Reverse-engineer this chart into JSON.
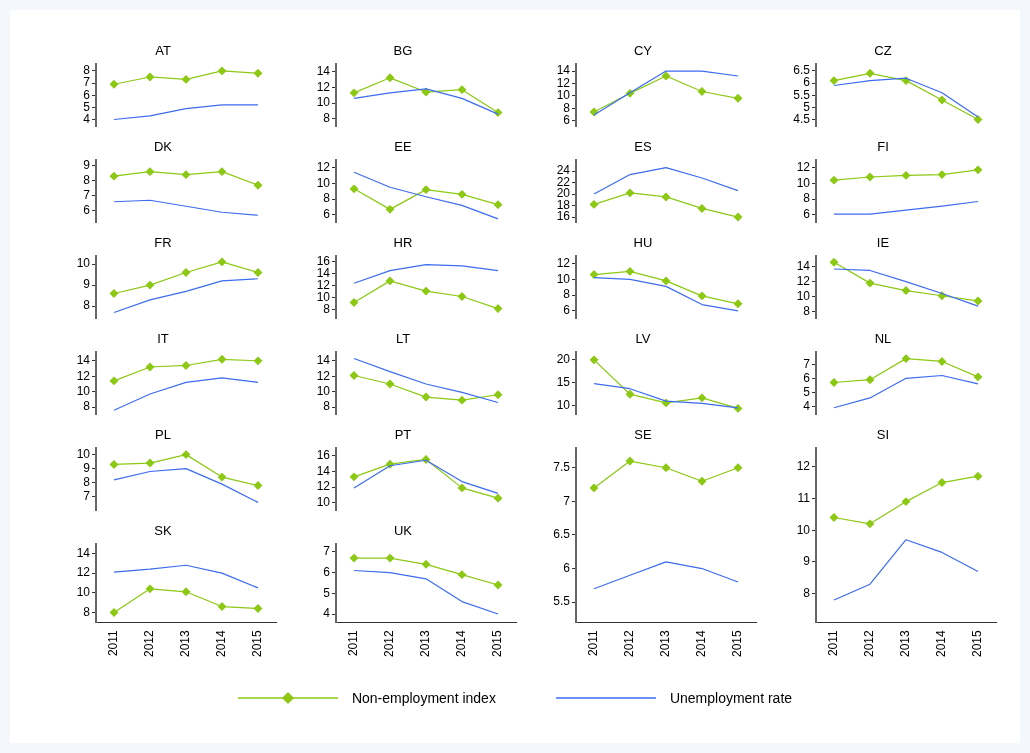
{
  "chart_data": [
    {
      "type": "line",
      "title": "AT",
      "legend": "bottom",
      "tick_labels": "y",
      "categories": [
        "2011",
        "2012",
        "2013",
        "2014",
        "2015"
      ],
      "ylim": [
        3.4,
        8.6
      ],
      "yticks": [
        4,
        5,
        6,
        7,
        8
      ],
      "series": [
        {
          "name": "Non-employment index",
          "color": "#8cc814",
          "marker": "diamond",
          "values": [
            6.9,
            7.5,
            7.3,
            8.0,
            7.8
          ]
        },
        {
          "name": "Unemployment rate",
          "color": "#3c6cf0",
          "marker": "none",
          "values": [
            4.0,
            4.3,
            4.9,
            5.2,
            5.2
          ]
        }
      ]
    },
    {
      "type": "line",
      "title": "BG",
      "tick_labels": "y",
      "categories": [
        "2011",
        "2012",
        "2013",
        "2014",
        "2015"
      ],
      "ylim": [
        7,
        15
      ],
      "yticks": [
        8,
        10,
        12,
        14
      ],
      "series": [
        {
          "color": "#8cc814",
          "marker": "diamond",
          "values": [
            11.3,
            13.2,
            11.4,
            11.7,
            8.8
          ]
        },
        {
          "color": "#3c6cf0",
          "marker": "none",
          "values": [
            10.6,
            11.3,
            11.8,
            10.6,
            8.6
          ]
        }
      ]
    },
    {
      "type": "line",
      "title": "CY",
      "tick_labels": "y",
      "categories": [
        "2011",
        "2012",
        "2013",
        "2014",
        "2015"
      ],
      "ylim": [
        5,
        15.2
      ],
      "yticks": [
        6,
        8,
        10,
        12,
        14
      ],
      "series": [
        {
          "color": "#8cc814",
          "marker": "diamond",
          "values": [
            7.4,
            10.4,
            13.2,
            10.7,
            9.6
          ]
        },
        {
          "color": "#3c6cf0",
          "marker": "none",
          "values": [
            6.9,
            10.5,
            14.0,
            14.0,
            13.2
          ]
        }
      ]
    },
    {
      "type": "line",
      "title": "CZ",
      "tick_labels": "y",
      "categories": [
        "2011",
        "2012",
        "2013",
        "2014",
        "2015"
      ],
      "ylim": [
        4.2,
        6.8
      ],
      "yticks": [
        4.5,
        5,
        5.5,
        6,
        6.5
      ],
      "series": [
        {
          "color": "#8cc814",
          "marker": "diamond",
          "values": [
            6.1,
            6.4,
            6.1,
            5.3,
            4.5
          ]
        },
        {
          "color": "#3c6cf0",
          "marker": "none",
          "values": [
            5.9,
            6.1,
            6.2,
            5.6,
            4.6
          ]
        }
      ]
    },
    {
      "type": "line",
      "title": "DK",
      "tick_labels": "y",
      "categories": [
        "2011",
        "2012",
        "2013",
        "2014",
        "2015"
      ],
      "ylim": [
        5.2,
        9.4
      ],
      "yticks": [
        6,
        7,
        8,
        9
      ],
      "series": [
        {
          "color": "#8cc814",
          "marker": "diamond",
          "values": [
            8.3,
            8.6,
            8.4,
            8.6,
            7.7
          ]
        },
        {
          "color": "#3c6cf0",
          "marker": "none",
          "values": [
            6.6,
            6.7,
            6.3,
            5.9,
            5.7
          ]
        }
      ]
    },
    {
      "type": "line",
      "title": "EE",
      "tick_labels": "y",
      "categories": [
        "2011",
        "2012",
        "2013",
        "2014",
        "2015"
      ],
      "ylim": [
        5,
        13
      ],
      "yticks": [
        6,
        8,
        10,
        12
      ],
      "series": [
        {
          "color": "#8cc814",
          "marker": "diamond",
          "values": [
            9.3,
            6.7,
            9.2,
            8.6,
            7.3
          ]
        },
        {
          "color": "#3c6cf0",
          "marker": "none",
          "values": [
            11.4,
            9.5,
            8.3,
            7.2,
            5.5
          ]
        }
      ]
    },
    {
      "type": "line",
      "title": "ES",
      "tick_labels": "y",
      "categories": [
        "2011",
        "2012",
        "2013",
        "2014",
        "2015"
      ],
      "ylim": [
        15,
        26
      ],
      "yticks": [
        16,
        18,
        20,
        22,
        24
      ],
      "series": [
        {
          "color": "#8cc814",
          "marker": "diamond",
          "values": [
            18.2,
            20.2,
            19.5,
            17.5,
            16.0
          ]
        },
        {
          "color": "#3c6cf0",
          "marker": "none",
          "values": [
            20.0,
            23.4,
            24.6,
            22.8,
            20.6
          ]
        }
      ]
    },
    {
      "type": "line",
      "title": "FI",
      "tick_labels": "y",
      "categories": [
        "2011",
        "2012",
        "2013",
        "2014",
        "2015"
      ],
      "ylim": [
        5,
        13
      ],
      "yticks": [
        6,
        8,
        10,
        12
      ],
      "series": [
        {
          "color": "#8cc814",
          "marker": "diamond",
          "values": [
            10.4,
            10.8,
            11.0,
            11.1,
            11.7
          ]
        },
        {
          "color": "#3c6cf0",
          "marker": "none",
          "values": [
            6.1,
            6.1,
            6.6,
            7.1,
            7.7
          ]
        }
      ]
    },
    {
      "type": "line",
      "title": "FR",
      "tick_labels": "y",
      "categories": [
        "2011",
        "2012",
        "2013",
        "2014",
        "2015"
      ],
      "ylim": [
        7.4,
        10.4
      ],
      "yticks": [
        8,
        9,
        10
      ],
      "series": [
        {
          "color": "#8cc814",
          "marker": "diamond",
          "values": [
            8.6,
            9.0,
            9.6,
            10.1,
            9.6
          ]
        },
        {
          "color": "#3c6cf0",
          "marker": "none",
          "values": [
            7.7,
            8.3,
            8.7,
            9.2,
            9.3
          ]
        }
      ]
    },
    {
      "type": "line",
      "title": "HR",
      "tick_labels": "y",
      "categories": [
        "2011",
        "2012",
        "2013",
        "2014",
        "2015"
      ],
      "ylim": [
        6.5,
        17
      ],
      "yticks": [
        8,
        10,
        12,
        14,
        16
      ],
      "series": [
        {
          "color": "#8cc814",
          "marker": "diamond",
          "values": [
            9.2,
            12.8,
            11.1,
            10.2,
            8.2
          ]
        },
        {
          "color": "#3c6cf0",
          "marker": "none",
          "values": [
            12.4,
            14.5,
            15.5,
            15.3,
            14.5
          ]
        }
      ]
    },
    {
      "type": "line",
      "title": "HU",
      "tick_labels": "y",
      "categories": [
        "2011",
        "2012",
        "2013",
        "2014",
        "2015"
      ],
      "ylim": [
        5,
        13
      ],
      "yticks": [
        6,
        8,
        10,
        12
      ],
      "series": [
        {
          "color": "#8cc814",
          "marker": "diamond",
          "values": [
            10.6,
            11.0,
            9.8,
            7.9,
            6.9
          ]
        },
        {
          "color": "#3c6cf0",
          "marker": "none",
          "values": [
            10.2,
            10.0,
            9.1,
            6.8,
            6.0
          ]
        }
      ]
    },
    {
      "type": "line",
      "title": "IE",
      "tick_labels": "y",
      "categories": [
        "2011",
        "2012",
        "2013",
        "2014",
        "2015"
      ],
      "ylim": [
        7,
        15.5
      ],
      "yticks": [
        8,
        10,
        12,
        14
      ],
      "series": [
        {
          "color": "#8cc814",
          "marker": "diamond",
          "values": [
            14.6,
            11.8,
            10.8,
            10.1,
            9.4
          ]
        },
        {
          "color": "#3c6cf0",
          "marker": "none",
          "values": [
            13.7,
            13.5,
            12.0,
            10.4,
            8.7
          ]
        }
      ]
    },
    {
      "type": "line",
      "title": "IT",
      "tick_labels": "y",
      "categories": [
        "2011",
        "2012",
        "2013",
        "2014",
        "2015"
      ],
      "ylim": [
        7,
        15.2
      ],
      "yticks": [
        8,
        10,
        12,
        14
      ],
      "series": [
        {
          "color": "#8cc814",
          "marker": "diamond",
          "values": [
            11.4,
            13.2,
            13.4,
            14.2,
            14.0
          ]
        },
        {
          "color": "#3c6cf0",
          "marker": "none",
          "values": [
            7.6,
            9.7,
            11.2,
            11.8,
            11.2
          ]
        }
      ]
    },
    {
      "type": "line",
      "title": "LT",
      "tick_labels": "y",
      "categories": [
        "2011",
        "2012",
        "2013",
        "2014",
        "2015"
      ],
      "ylim": [
        7,
        15.2
      ],
      "yticks": [
        8,
        10,
        12,
        14
      ],
      "series": [
        {
          "color": "#8cc814",
          "marker": "diamond",
          "values": [
            12.1,
            11.0,
            9.3,
            8.9,
            9.6
          ]
        },
        {
          "color": "#3c6cf0",
          "marker": "none",
          "values": [
            14.3,
            12.6,
            11.0,
            9.9,
            8.6
          ]
        }
      ]
    },
    {
      "type": "line",
      "title": "LV",
      "tick_labels": "y",
      "categories": [
        "2011",
        "2012",
        "2013",
        "2014",
        "2015"
      ],
      "ylim": [
        8,
        21.8
      ],
      "yticks": [
        10,
        15,
        20
      ],
      "series": [
        {
          "color": "#8cc814",
          "marker": "diamond",
          "values": [
            20.0,
            12.5,
            10.6,
            11.7,
            9.4
          ]
        },
        {
          "color": "#3c6cf0",
          "marker": "none",
          "values": [
            14.8,
            13.7,
            11.0,
            10.5,
            9.5
          ]
        }
      ]
    },
    {
      "type": "line",
      "title": "NL",
      "tick_labels": "y",
      "categories": [
        "2011",
        "2012",
        "2013",
        "2014",
        "2015"
      ],
      "ylim": [
        3.4,
        7.9
      ],
      "yticks": [
        4,
        5,
        6,
        7
      ],
      "series": [
        {
          "color": "#8cc814",
          "marker": "diamond",
          "values": [
            5.7,
            5.9,
            7.4,
            7.2,
            6.1
          ]
        },
        {
          "color": "#3c6cf0",
          "marker": "none",
          "values": [
            3.9,
            4.6,
            6.0,
            6.2,
            5.6
          ]
        }
      ]
    },
    {
      "type": "line",
      "title": "PL",
      "tick_labels": "y",
      "categories": [
        "2011",
        "2012",
        "2013",
        "2014",
        "2015"
      ],
      "ylim": [
        6,
        10.5
      ],
      "yticks": [
        7,
        8,
        9,
        10
      ],
      "series": [
        {
          "color": "#8cc814",
          "marker": "diamond",
          "values": [
            9.3,
            9.4,
            10.0,
            8.4,
            7.8
          ]
        },
        {
          "color": "#3c6cf0",
          "marker": "none",
          "values": [
            8.2,
            8.8,
            9.0,
            7.9,
            6.6
          ]
        }
      ]
    },
    {
      "type": "line",
      "title": "PT",
      "tick_labels": "y",
      "categories": [
        "2011",
        "2012",
        "2013",
        "2014",
        "2015"
      ],
      "ylim": [
        9,
        17
      ],
      "yticks": [
        10,
        12,
        14,
        16
      ],
      "series": [
        {
          "color": "#8cc814",
          "marker": "diamond",
          "values": [
            13.3,
            14.9,
            15.5,
            11.9,
            10.6
          ]
        },
        {
          "color": "#3c6cf0",
          "marker": "none",
          "values": [
            11.9,
            14.7,
            15.4,
            12.7,
            11.2
          ]
        }
      ]
    },
    {
      "type": "line",
      "title": "SE",
      "categories": [
        "2011",
        "2012",
        "2013",
        "2014",
        "2015"
      ],
      "ylim": [
        5.2,
        7.8
      ],
      "yticks": [
        5.5,
        6,
        6.5,
        7,
        7.5
      ],
      "series": [
        {
          "color": "#8cc814",
          "marker": "diamond",
          "values": [
            7.2,
            7.6,
            7.5,
            7.3,
            7.5
          ]
        },
        {
          "color": "#3c6cf0",
          "marker": "none",
          "values": [
            5.7,
            5.9,
            6.1,
            6.0,
            5.8
          ]
        }
      ]
    },
    {
      "type": "line",
      "title": "SI",
      "categories": [
        "2011",
        "2012",
        "2013",
        "2014",
        "2015"
      ],
      "ylim": [
        7.1,
        12.6
      ],
      "yticks": [
        8,
        9,
        10,
        11,
        12
      ],
      "series": [
        {
          "color": "#8cc814",
          "marker": "diamond",
          "values": [
            10.4,
            10.2,
            10.9,
            11.5,
            11.7
          ]
        },
        {
          "color": "#3c6cf0",
          "marker": "none",
          "values": [
            7.8,
            8.3,
            9.7,
            9.3,
            8.7
          ]
        }
      ]
    },
    {
      "type": "line",
      "title": "SK",
      "categories": [
        "2011",
        "2012",
        "2013",
        "2014",
        "2015"
      ],
      "ylim": [
        7,
        15
      ],
      "yticks": [
        8,
        10,
        12,
        14
      ],
      "series": [
        {
          "color": "#8cc814",
          "marker": "diamond",
          "values": [
            8.0,
            10.4,
            10.1,
            8.6,
            8.4
          ]
        },
        {
          "color": "#3c6cf0",
          "marker": "none",
          "values": [
            12.1,
            12.4,
            12.8,
            12.0,
            10.5
          ]
        }
      ]
    },
    {
      "type": "line",
      "title": "UK",
      "categories": [
        "2011",
        "2012",
        "2013",
        "2014",
        "2015"
      ],
      "ylim": [
        3.6,
        7.4
      ],
      "yticks": [
        4,
        5,
        6,
        7
      ],
      "series": [
        {
          "color": "#8cc814",
          "marker": "diamond",
          "values": [
            6.7,
            6.7,
            6.4,
            5.9,
            5.4
          ]
        },
        {
          "color": "#3c6cf0",
          "marker": "none",
          "values": [
            6.1,
            6.0,
            5.7,
            4.6,
            4.0
          ]
        }
      ]
    }
  ]
}
